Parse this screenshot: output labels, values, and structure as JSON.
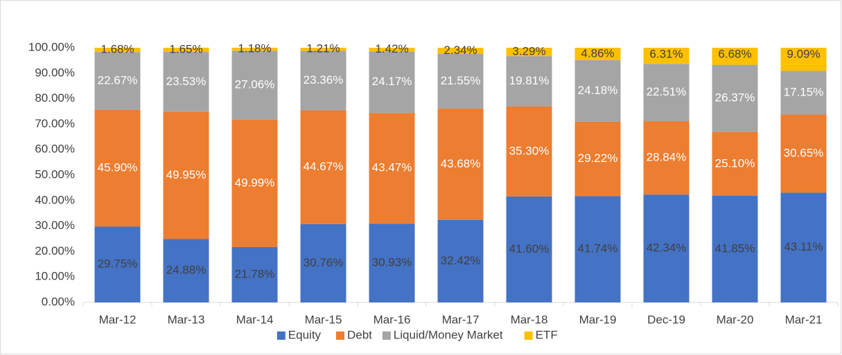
{
  "chart_data": {
    "type": "bar",
    "stacked": true,
    "categories": [
      "Mar-12",
      "Mar-13",
      "Mar-14",
      "Mar-15",
      "Mar-16",
      "Mar-17",
      "Mar-18",
      "Mar-19",
      "Dec-19",
      "Mar-20",
      "Mar-21"
    ],
    "series": [
      {
        "name": "Equity",
        "color": "#4472c4",
        "values": [
          29.75,
          24.88,
          21.78,
          30.76,
          30.93,
          32.42,
          41.6,
          41.74,
          42.34,
          41.85,
          43.11
        ],
        "value_labels": [
          "29.75%",
          "24.88%",
          "21.78%",
          "30.76%",
          "30.93%",
          "32.42%",
          "41.60%",
          "41.74%",
          "42.34%",
          "41.85%",
          "43.11%"
        ]
      },
      {
        "name": "Debt",
        "color": "#ed7d31",
        "values": [
          45.9,
          49.95,
          49.99,
          44.67,
          43.47,
          43.68,
          35.3,
          29.22,
          28.84,
          25.1,
          30.65
        ],
        "value_labels": [
          "45.90%",
          "49.95%",
          "49.99%",
          "44.67%",
          "43.47%",
          "43.68%",
          "35.30%",
          "29.22%",
          "28.84%",
          "25.10%",
          "30.65%"
        ]
      },
      {
        "name": "Liquid/Money Market",
        "color": "#a5a5a5",
        "values": [
          22.67,
          23.53,
          27.06,
          23.36,
          24.17,
          21.55,
          19.81,
          24.18,
          22.51,
          26.37,
          17.15
        ],
        "value_labels": [
          "22.67%",
          "23.53%",
          "27.06%",
          "23.36%",
          "24.17%",
          "21.55%",
          "19.81%",
          "24.18%",
          "22.51%",
          "26.37%",
          "17.15%"
        ]
      },
      {
        "name": "ETF",
        "color": "#ffc000",
        "values": [
          1.68,
          1.65,
          1.18,
          1.21,
          1.42,
          2.34,
          3.29,
          4.86,
          6.31,
          6.68,
          9.09
        ],
        "value_labels": [
          "1.68%",
          "1.65%",
          "1.18%",
          "1.21%",
          "1.42%",
          "2.34%",
          "3.29%",
          "4.86%",
          "6.31%",
          "6.68%",
          "9.09%"
        ]
      }
    ],
    "ylim": [
      0,
      100
    ],
    "yticks": [
      {
        "value": 0,
        "label": "0.00%"
      },
      {
        "value": 10,
        "label": "10.00%"
      },
      {
        "value": 20,
        "label": "20.00%"
      },
      {
        "value": 30,
        "label": "30.00%"
      },
      {
        "value": 40,
        "label": "40.00%"
      },
      {
        "value": 50,
        "label": "50.00%"
      },
      {
        "value": 60,
        "label": "60.00%"
      },
      {
        "value": 70,
        "label": "70.00%"
      },
      {
        "value": 80,
        "label": "80.00%"
      },
      {
        "value": 90,
        "label": "90.00%"
      },
      {
        "value": 100,
        "label": "100.00%"
      }
    ],
    "legend": "bottom"
  }
}
